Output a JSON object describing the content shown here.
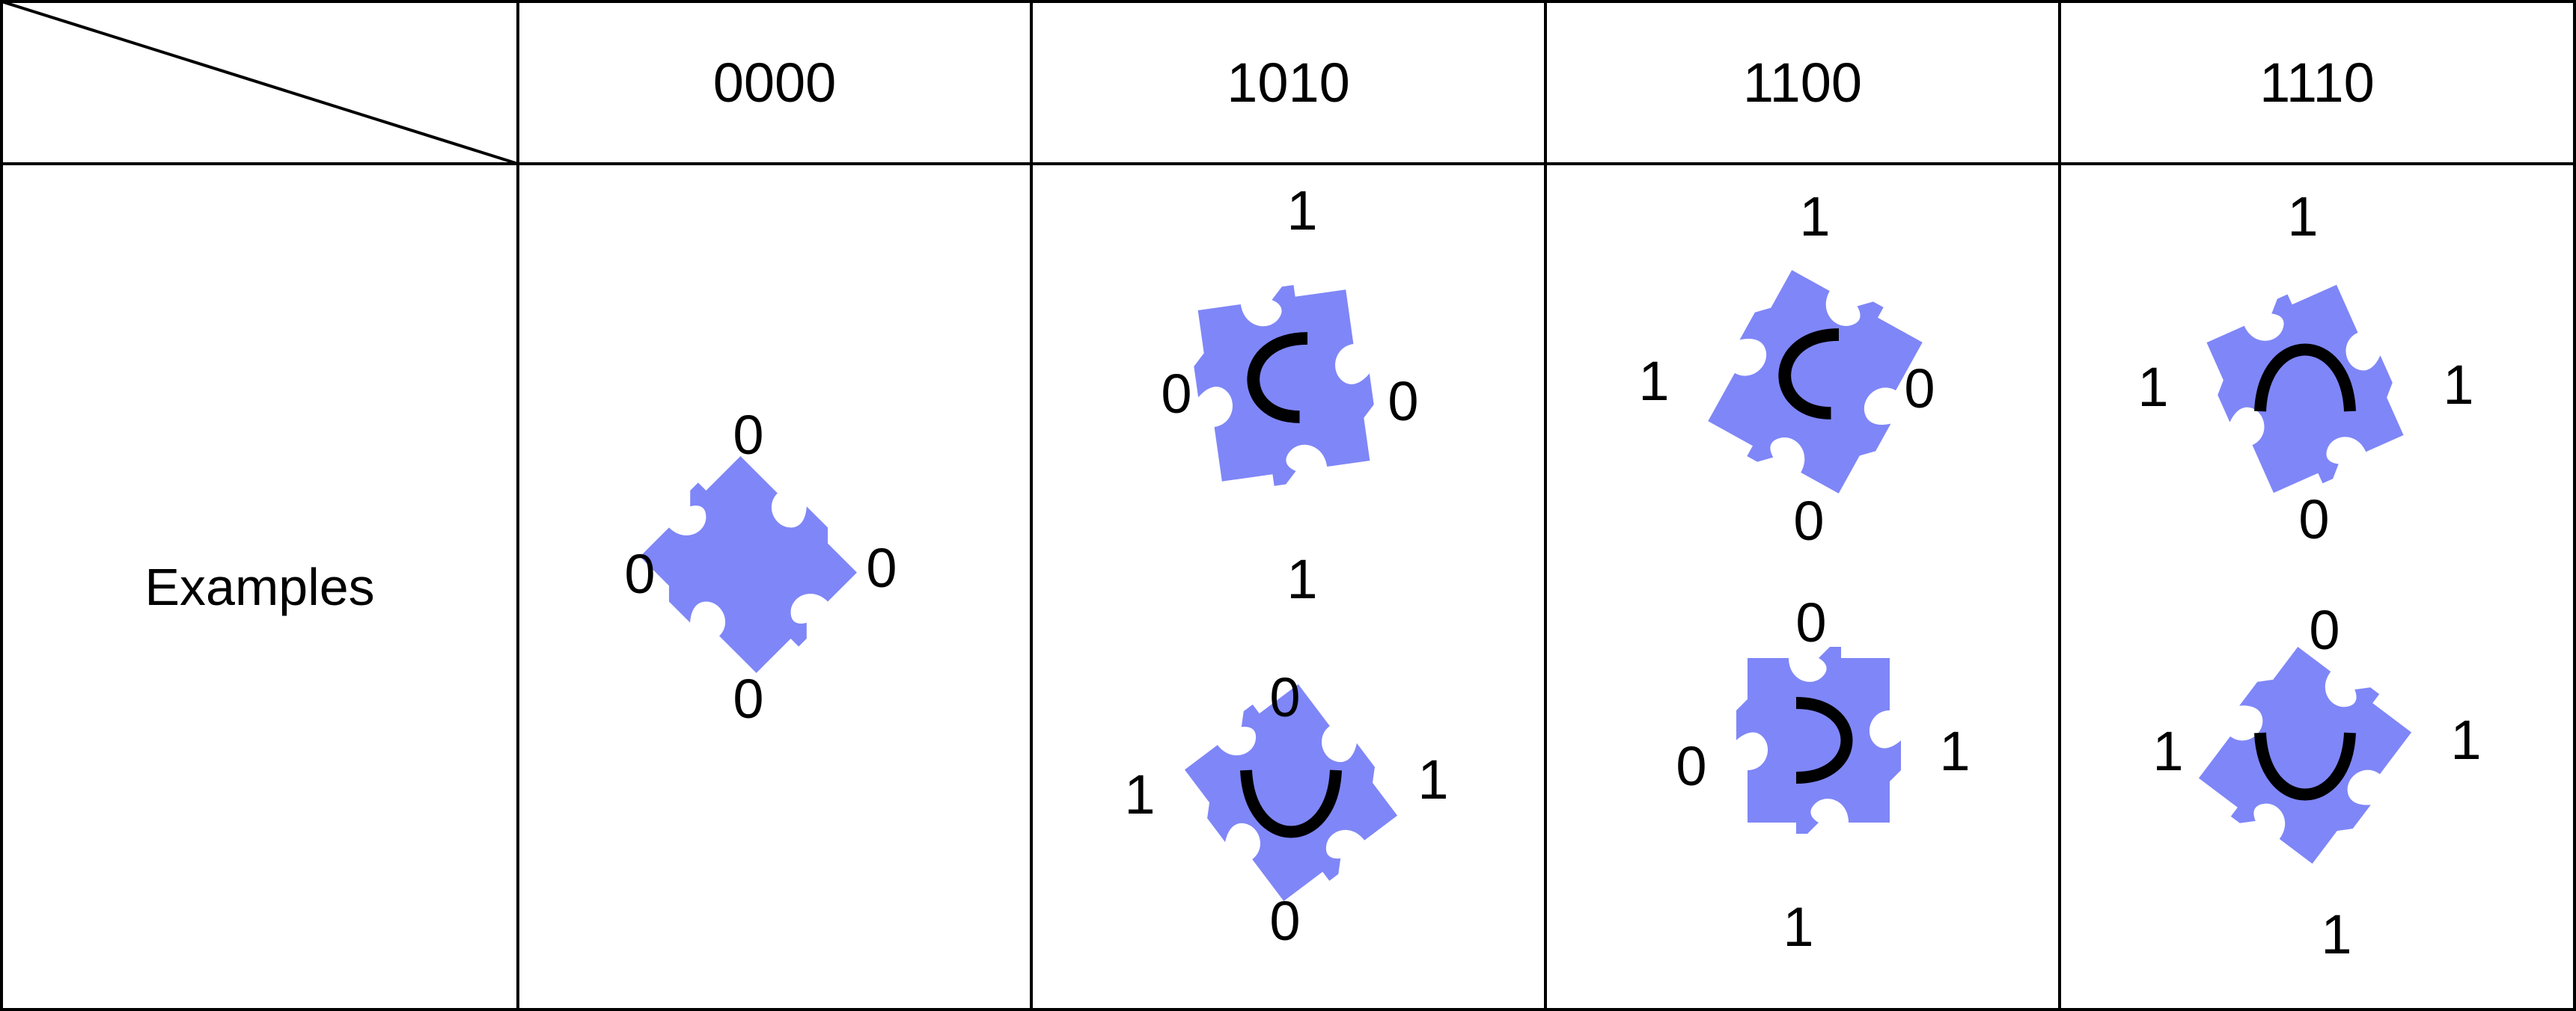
{
  "header": {
    "columns": [
      "0000",
      "1010",
      "1100",
      "1110"
    ]
  },
  "rows": {
    "label": "Examples"
  },
  "colors": {
    "piece": "#7f86f7",
    "line": "#000000"
  },
  "examples": [
    {
      "code": "0000",
      "pieces": [
        {
          "top": "0",
          "right": "0",
          "bottom": "0",
          "left": "0"
        }
      ]
    },
    {
      "code": "1010",
      "pieces": [
        {
          "top": "1",
          "right": "0",
          "bottom": "1",
          "left": "0"
        },
        {
          "top": "0",
          "right": "1",
          "bottom": "0",
          "left": "1"
        }
      ]
    },
    {
      "code": "1100",
      "pieces": [
        {
          "top": "1",
          "right": "0",
          "bottom": "0",
          "left": "1"
        },
        {
          "top": "0",
          "right": "1",
          "bottom": "1",
          "left": "0"
        }
      ]
    },
    {
      "code": "1110",
      "pieces": [
        {
          "top": "1",
          "right": "1",
          "bottom": "0",
          "left": "1"
        },
        {
          "top": "0",
          "right": "1",
          "bottom": "1",
          "left": "1"
        }
      ]
    }
  ]
}
